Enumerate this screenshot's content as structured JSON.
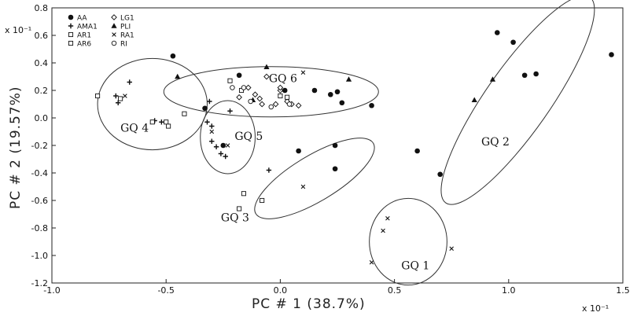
{
  "chart_data": {
    "type": "scatter",
    "xlabel": "PC # 1 (38.7%)",
    "ylabel": "PC # 2 (19.57%)",
    "x_scale_note": "x 10⁻¹",
    "y_scale_note": "x 10⁻¹",
    "xlim": [
      -1.0,
      1.5
    ],
    "ylim": [
      -1.2,
      0.8
    ],
    "x_ticks": [
      "-1.0",
      "-0.5",
      "0.0",
      "0.5",
      "1.0",
      "1.5"
    ],
    "y_ticks": [
      "0.8",
      "0.6",
      "0.4",
      "0.2",
      "0.0",
      "-0.2",
      "-0.4",
      "-0.6",
      "-0.8",
      "-1.0",
      "-1.2"
    ],
    "x_tick_values": [
      -1.0,
      -0.5,
      0.0,
      0.5,
      1.0,
      1.5
    ],
    "y_tick_values": [
      0.8,
      0.6,
      0.4,
      0.2,
      0.0,
      -0.2,
      -0.4,
      -0.6,
      -0.8,
      -1.0,
      -1.2
    ],
    "legend_placement": "top-left",
    "legend": [
      {
        "code": "AA",
        "marker": "filled-circle"
      },
      {
        "code": "LG1",
        "marker": "diamond"
      },
      {
        "code": "AMA1",
        "marker": "plus"
      },
      {
        "code": "PLI",
        "marker": "filled-triangle"
      },
      {
        "code": "AR1",
        "marker": "square"
      },
      {
        "code": "RA1",
        "marker": "cross"
      },
      {
        "code": "AR6",
        "marker": "square"
      },
      {
        "code": "RI",
        "marker": "circle"
      }
    ],
    "series": [
      {
        "name": "AA",
        "marker": "filled-circle",
        "points": [
          [
            -0.47,
            0.45
          ],
          [
            -0.18,
            0.31
          ],
          [
            -0.25,
            -0.2
          ],
          [
            -0.33,
            0.07
          ],
          [
            0.02,
            0.2
          ],
          [
            0.15,
            0.2
          ],
          [
            0.22,
            0.17
          ],
          [
            0.25,
            0.19
          ],
          [
            0.27,
            0.11
          ],
          [
            0.4,
            0.09
          ],
          [
            0.08,
            -0.24
          ],
          [
            0.24,
            -0.2
          ],
          [
            0.24,
            -0.37
          ],
          [
            0.6,
            -0.24
          ],
          [
            0.7,
            -0.41
          ],
          [
            0.95,
            0.62
          ],
          [
            1.02,
            0.55
          ],
          [
            1.07,
            0.31
          ],
          [
            1.12,
            0.32
          ],
          [
            1.45,
            0.46
          ]
        ]
      },
      {
        "name": "LG1",
        "marker": "diamond",
        "points": [
          [
            -0.18,
            0.15
          ],
          [
            -0.11,
            0.17
          ],
          [
            -0.09,
            0.14
          ],
          [
            -0.06,
            0.3
          ],
          [
            -0.02,
            0.1
          ],
          [
            0.0,
            0.2
          ],
          [
            0.03,
            0.12
          ],
          [
            0.05,
            0.1
          ],
          [
            0.08,
            0.09
          ],
          [
            -0.08,
            0.1
          ],
          [
            0.0,
            0.22
          ],
          [
            -0.14,
            0.22
          ]
        ]
      },
      {
        "name": "AMA1",
        "marker": "plus",
        "points": [
          [
            -0.66,
            0.26
          ],
          [
            -0.72,
            0.16
          ],
          [
            -0.71,
            0.11
          ],
          [
            -0.55,
            -0.02
          ],
          [
            -0.52,
            -0.03
          ],
          [
            -0.3,
            -0.17
          ],
          [
            -0.32,
            -0.03
          ],
          [
            -0.3,
            -0.06
          ],
          [
            -0.28,
            -0.21
          ],
          [
            -0.26,
            -0.26
          ],
          [
            -0.24,
            -0.28
          ],
          [
            -0.31,
            0.12
          ],
          [
            -0.22,
            0.05
          ],
          [
            -0.05,
            -0.38
          ]
        ]
      },
      {
        "name": "PLI",
        "marker": "filled-triangle",
        "points": [
          [
            -0.45,
            0.3
          ],
          [
            -0.06,
            0.37
          ],
          [
            0.3,
            0.28
          ],
          [
            0.93,
            0.28
          ],
          [
            0.85,
            0.13
          ],
          [
            -0.12,
            0.13
          ]
        ]
      },
      {
        "name": "AR1",
        "marker": "square",
        "points": [
          [
            -0.8,
            0.16
          ],
          [
            -0.7,
            0.14
          ],
          [
            -0.56,
            -0.03
          ],
          [
            -0.5,
            -0.03
          ],
          [
            -0.49,
            -0.06
          ],
          [
            -0.42,
            0.03
          ],
          [
            -0.16,
            -0.55
          ],
          [
            -0.18,
            -0.66
          ],
          [
            -0.08,
            -0.6
          ]
        ]
      },
      {
        "name": "RA1",
        "marker": "cross",
        "points": [
          [
            -0.68,
            0.16
          ],
          [
            0.1,
            0.33
          ],
          [
            -0.3,
            -0.1
          ],
          [
            -0.23,
            -0.2
          ],
          [
            0.1,
            -0.5
          ],
          [
            0.47,
            -0.73
          ],
          [
            0.45,
            -0.82
          ],
          [
            0.4,
            -1.05
          ],
          [
            0.75,
            -0.95
          ]
        ]
      },
      {
        "name": "AR6",
        "marker": "square",
        "points": [
          [
            -0.22,
            0.27
          ],
          [
            -0.17,
            0.2
          ],
          [
            0.0,
            0.16
          ],
          [
            0.03,
            0.15
          ]
        ]
      },
      {
        "name": "RI",
        "marker": "circle",
        "points": [
          [
            -0.21,
            0.22
          ],
          [
            -0.16,
            0.22
          ],
          [
            -0.13,
            0.12
          ],
          [
            0.04,
            0.1
          ],
          [
            -0.04,
            0.08
          ]
        ]
      }
    ],
    "groups": [
      {
        "label": "GQ 1",
        "center": [
          0.56,
          -0.9
        ],
        "rx": 0.17,
        "ry": 0.19,
        "angle": 0,
        "label_pos": [
          0.53,
          -1.1
        ]
      },
      {
        "label": "GQ 2",
        "center": [
          1.04,
          0.13
        ],
        "rx": 0.55,
        "ry": 0.14,
        "angle": 55,
        "label_pos": [
          0.88,
          -0.2
        ]
      },
      {
        "label": "GQ 3",
        "center": [
          0.15,
          -0.44
        ],
        "rx": 0.3,
        "ry": 0.1,
        "angle": 31,
        "label_pos": [
          -0.26,
          -0.75
        ]
      },
      {
        "label": "GQ 4",
        "center": [
          -0.56,
          0.1
        ],
        "rx": 0.24,
        "ry": 0.2,
        "angle": 0,
        "label_pos": [
          -0.7,
          -0.1
        ]
      },
      {
        "label": "GQ 5",
        "center": [
          -0.23,
          -0.14
        ],
        "rx": 0.12,
        "ry": 0.16,
        "angle": 0,
        "label_pos": [
          -0.2,
          -0.16
        ]
      },
      {
        "label": "GQ 6",
        "center": [
          -0.04,
          0.19
        ],
        "rx": 0.47,
        "ry": 0.11,
        "angle": 0,
        "label_pos": [
          -0.05,
          0.26
        ]
      }
    ]
  }
}
